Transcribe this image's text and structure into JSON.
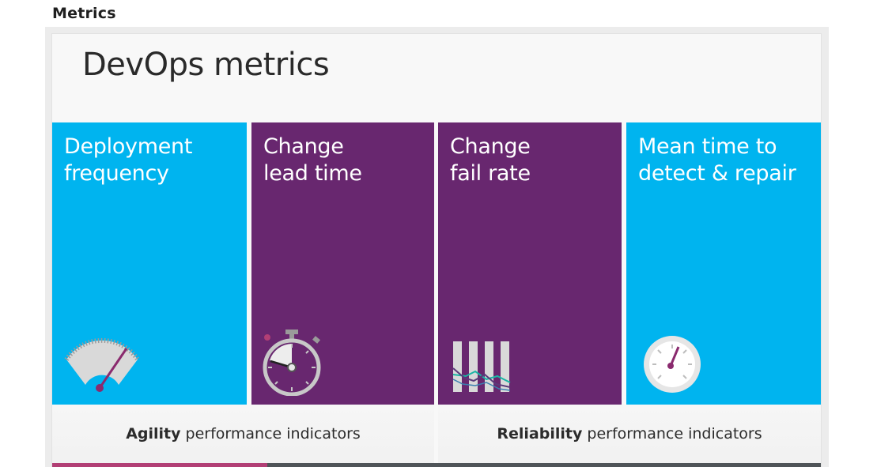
{
  "page": {
    "heading": "Metrics"
  },
  "slide": {
    "title": "DevOps metrics",
    "tiles": [
      {
        "label": "Deployment\nfrequency",
        "color": "#00b4ef",
        "icon": "speedometer-icon"
      },
      {
        "label": "Change\nlead time",
        "color": "#68276f",
        "icon": "stopwatch-icon"
      },
      {
        "label": "Change\nfail rate",
        "color": "#68276f",
        "icon": "bar-chart-icon"
      },
      {
        "label": "Mean time to\ndetect & repair",
        "color": "#00b4ef",
        "icon": "gauge-icon"
      }
    ],
    "bands": [
      {
        "bold": "Agility",
        "rest": " performance indicators"
      },
      {
        "bold": "Reliability",
        "rest": " performance indicators"
      }
    ]
  },
  "video": {
    "progress_fraction": 0.28,
    "progress_color": "#b23f75"
  }
}
